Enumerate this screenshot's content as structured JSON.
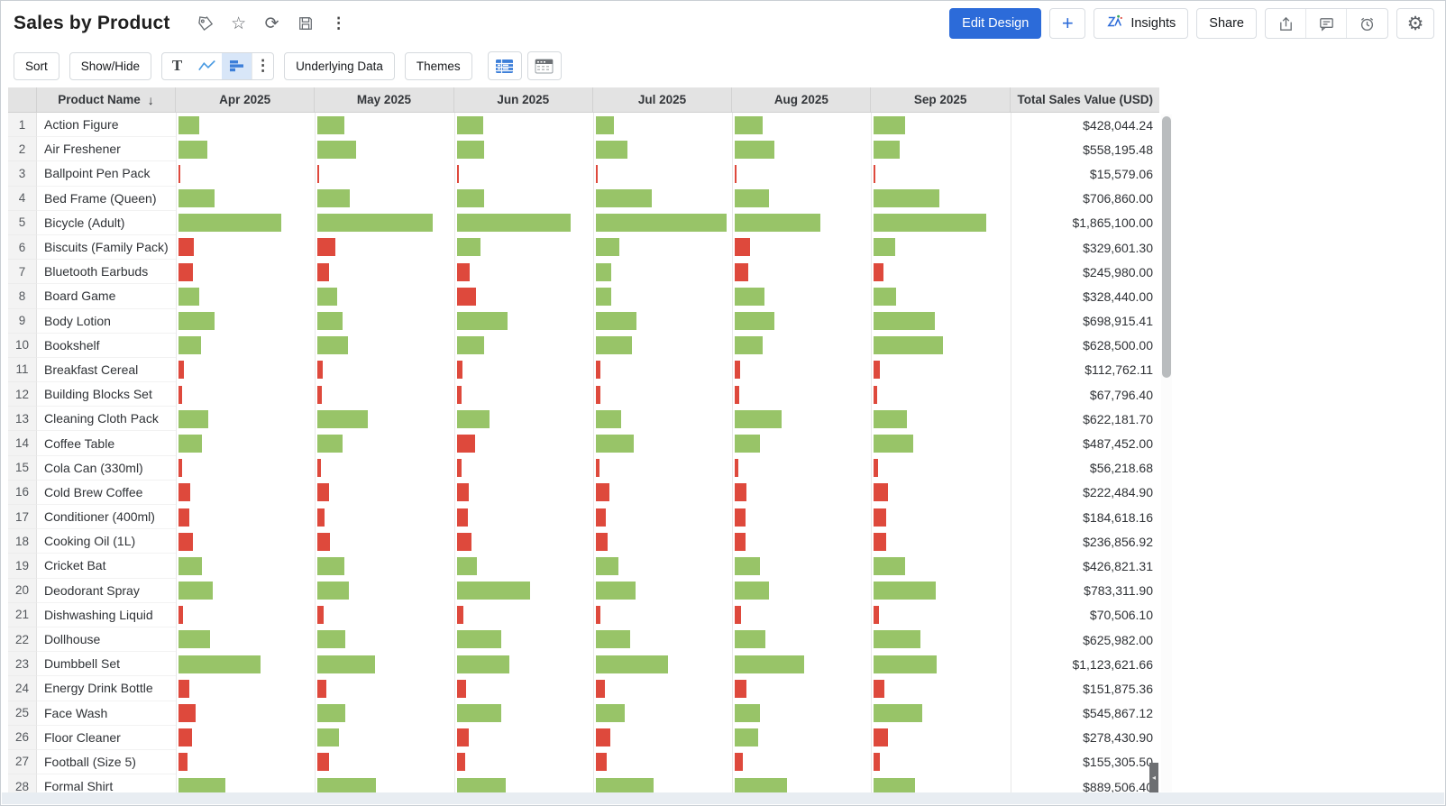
{
  "header": {
    "title": "Sales by Product",
    "actions": {
      "edit_design": "Edit Design",
      "add": "+",
      "insights": "Insights",
      "share": "Share"
    }
  },
  "toolbar": {
    "sort": "Sort",
    "show_hide": "Show/Hide",
    "text_tool": "T",
    "underlying_data": "Underlying Data",
    "themes": "Themes"
  },
  "glyphs": {
    "star": "☆",
    "refresh": "⟳",
    "kebab": "⋮",
    "gear": "⚙",
    "sort_arrow": "↓",
    "handle_arrow": "◂"
  },
  "colors": {
    "bar_green": "#98c468",
    "bar_red": "#de493c",
    "accent_blue": "#2c6bd9"
  },
  "table": {
    "columns": [
      "Product Name",
      "Apr 2025",
      "May 2025",
      "Jun 2025",
      "Jul 2025",
      "Aug 2025",
      "Sep 2025",
      "Total Sales Value (USD)"
    ],
    "sorted_by": "Product Name",
    "sort_direction": "descending-arrow-shown",
    "rows": [
      {
        "num": 1,
        "name": "Action Figure",
        "total": "$428,044.24",
        "bars": [
          [
            23,
            "g"
          ],
          [
            30,
            "g"
          ],
          [
            29,
            "g"
          ],
          [
            20,
            "g"
          ],
          [
            31,
            "g"
          ],
          [
            35,
            "g"
          ]
        ]
      },
      {
        "num": 2,
        "name": "Air Freshener",
        "total": "$558,195.48",
        "bars": [
          [
            32,
            "g"
          ],
          [
            43,
            "g"
          ],
          [
            30,
            "g"
          ],
          [
            35,
            "g"
          ],
          [
            44,
            "g"
          ],
          [
            29,
            "g"
          ]
        ]
      },
      {
        "num": 3,
        "name": "Ballpoint Pen Pack",
        "total": "$15,579.06",
        "bars": [
          [
            2,
            "r"
          ],
          [
            2,
            "r"
          ],
          [
            2,
            "r"
          ],
          [
            2,
            "r"
          ],
          [
            2,
            "r"
          ],
          [
            2,
            "r"
          ]
        ]
      },
      {
        "num": 4,
        "name": "Bed Frame (Queen)",
        "total": "$706,860.00",
        "bars": [
          [
            40,
            "g"
          ],
          [
            36,
            "g"
          ],
          [
            30,
            "g"
          ],
          [
            62,
            "g"
          ],
          [
            38,
            "g"
          ],
          [
            73,
            "g"
          ]
        ]
      },
      {
        "num": 5,
        "name": "Bicycle (Adult)",
        "total": "$1,865,100.00",
        "bars": [
          [
            114,
            "g"
          ],
          [
            128,
            "g"
          ],
          [
            126,
            "g"
          ],
          [
            145,
            "g"
          ],
          [
            95,
            "g"
          ],
          [
            125,
            "g"
          ]
        ]
      },
      {
        "num": 6,
        "name": "Biscuits (Family Pack)",
        "total": "$329,601.30",
        "bars": [
          [
            17,
            "r"
          ],
          [
            20,
            "r"
          ],
          [
            26,
            "g"
          ],
          [
            26,
            "g"
          ],
          [
            17,
            "r"
          ],
          [
            24,
            "g"
          ]
        ]
      },
      {
        "num": 7,
        "name": "Bluetooth Earbuds",
        "total": "$245,980.00",
        "bars": [
          [
            16,
            "r"
          ],
          [
            13,
            "r"
          ],
          [
            14,
            "r"
          ],
          [
            17,
            "g"
          ],
          [
            15,
            "r"
          ],
          [
            11,
            "r"
          ]
        ]
      },
      {
        "num": 8,
        "name": "Board Game",
        "total": "$328,440.00",
        "bars": [
          [
            23,
            "g"
          ],
          [
            22,
            "g"
          ],
          [
            21,
            "r"
          ],
          [
            17,
            "g"
          ],
          [
            33,
            "g"
          ],
          [
            25,
            "g"
          ]
        ]
      },
      {
        "num": 9,
        "name": "Body Lotion",
        "total": "$698,915.41",
        "bars": [
          [
            40,
            "g"
          ],
          [
            28,
            "g"
          ],
          [
            56,
            "g"
          ],
          [
            45,
            "g"
          ],
          [
            44,
            "g"
          ],
          [
            68,
            "g"
          ]
        ]
      },
      {
        "num": 10,
        "name": "Bookshelf",
        "total": "$628,500.00",
        "bars": [
          [
            25,
            "g"
          ],
          [
            34,
            "g"
          ],
          [
            30,
            "g"
          ],
          [
            40,
            "g"
          ],
          [
            31,
            "g"
          ],
          [
            77,
            "g"
          ]
        ]
      },
      {
        "num": 11,
        "name": "Breakfast Cereal",
        "total": "$112,762.11",
        "bars": [
          [
            6,
            "r"
          ],
          [
            6,
            "r"
          ],
          [
            6,
            "r"
          ],
          [
            5,
            "r"
          ],
          [
            6,
            "r"
          ],
          [
            7,
            "r"
          ]
        ]
      },
      {
        "num": 12,
        "name": "Building Blocks Set",
        "total": "$67,796.40",
        "bars": [
          [
            4,
            "r"
          ],
          [
            5,
            "r"
          ],
          [
            5,
            "r"
          ],
          [
            5,
            "r"
          ],
          [
            5,
            "r"
          ],
          [
            4,
            "r"
          ]
        ]
      },
      {
        "num": 13,
        "name": "Cleaning Cloth Pack",
        "total": "$622,181.70",
        "bars": [
          [
            33,
            "g"
          ],
          [
            56,
            "g"
          ],
          [
            36,
            "g"
          ],
          [
            28,
            "g"
          ],
          [
            52,
            "g"
          ],
          [
            37,
            "g"
          ]
        ]
      },
      {
        "num": 14,
        "name": "Coffee Table",
        "total": "$487,452.00",
        "bars": [
          [
            26,
            "g"
          ],
          [
            28,
            "g"
          ],
          [
            20,
            "r"
          ],
          [
            42,
            "g"
          ],
          [
            28,
            "g"
          ],
          [
            44,
            "g"
          ]
        ]
      },
      {
        "num": 15,
        "name": "Cola Can (330ml)",
        "total": "$56,218.68",
        "bars": [
          [
            4,
            "r"
          ],
          [
            4,
            "r"
          ],
          [
            5,
            "r"
          ],
          [
            4,
            "r"
          ],
          [
            4,
            "r"
          ],
          [
            5,
            "r"
          ]
        ]
      },
      {
        "num": 16,
        "name": "Cold Brew Coffee",
        "total": "$222,484.90",
        "bars": [
          [
            13,
            "r"
          ],
          [
            13,
            "r"
          ],
          [
            13,
            "r"
          ],
          [
            15,
            "r"
          ],
          [
            13,
            "r"
          ],
          [
            16,
            "r"
          ]
        ]
      },
      {
        "num": 17,
        "name": "Conditioner (400ml)",
        "total": "$184,618.16",
        "bars": [
          [
            12,
            "r"
          ],
          [
            8,
            "r"
          ],
          [
            12,
            "r"
          ],
          [
            11,
            "r"
          ],
          [
            12,
            "r"
          ],
          [
            14,
            "r"
          ]
        ]
      },
      {
        "num": 18,
        "name": "Cooking Oil (1L)",
        "total": "$236,856.92",
        "bars": [
          [
            16,
            "r"
          ],
          [
            14,
            "r"
          ],
          [
            16,
            "r"
          ],
          [
            13,
            "r"
          ],
          [
            12,
            "r"
          ],
          [
            14,
            "r"
          ]
        ]
      },
      {
        "num": 19,
        "name": "Cricket Bat",
        "total": "$426,821.31",
        "bars": [
          [
            26,
            "g"
          ],
          [
            30,
            "g"
          ],
          [
            22,
            "g"
          ],
          [
            25,
            "g"
          ],
          [
            28,
            "g"
          ],
          [
            35,
            "g"
          ]
        ]
      },
      {
        "num": 20,
        "name": "Deodorant Spray",
        "total": "$783,311.90",
        "bars": [
          [
            38,
            "g"
          ],
          [
            35,
            "g"
          ],
          [
            81,
            "g"
          ],
          [
            44,
            "g"
          ],
          [
            38,
            "g"
          ],
          [
            69,
            "g"
          ]
        ]
      },
      {
        "num": 21,
        "name": "Dishwashing Liquid",
        "total": "$70,506.10",
        "bars": [
          [
            5,
            "r"
          ],
          [
            7,
            "r"
          ],
          [
            7,
            "r"
          ],
          [
            5,
            "r"
          ],
          [
            7,
            "r"
          ],
          [
            6,
            "r"
          ]
        ]
      },
      {
        "num": 22,
        "name": "Dollhouse",
        "total": "$625,982.00",
        "bars": [
          [
            35,
            "g"
          ],
          [
            31,
            "g"
          ],
          [
            49,
            "g"
          ],
          [
            38,
            "g"
          ],
          [
            34,
            "g"
          ],
          [
            52,
            "g"
          ]
        ]
      },
      {
        "num": 23,
        "name": "Dumbbell Set",
        "total": "$1,123,621.66",
        "bars": [
          [
            91,
            "g"
          ],
          [
            64,
            "g"
          ],
          [
            58,
            "g"
          ],
          [
            80,
            "g"
          ],
          [
            77,
            "g"
          ],
          [
            70,
            "g"
          ]
        ]
      },
      {
        "num": 24,
        "name": "Energy Drink Bottle",
        "total": "$151,875.36",
        "bars": [
          [
            12,
            "r"
          ],
          [
            10,
            "r"
          ],
          [
            10,
            "r"
          ],
          [
            10,
            "r"
          ],
          [
            13,
            "r"
          ],
          [
            12,
            "r"
          ]
        ]
      },
      {
        "num": 25,
        "name": "Face Wash",
        "total": "$545,867.12",
        "bars": [
          [
            19,
            "r"
          ],
          [
            31,
            "g"
          ],
          [
            49,
            "g"
          ],
          [
            32,
            "g"
          ],
          [
            28,
            "g"
          ],
          [
            54,
            "g"
          ]
        ]
      },
      {
        "num": 26,
        "name": "Floor Cleaner",
        "total": "$278,430.90",
        "bars": [
          [
            15,
            "r"
          ],
          [
            24,
            "g"
          ],
          [
            13,
            "r"
          ],
          [
            16,
            "r"
          ],
          [
            26,
            "g"
          ],
          [
            16,
            "r"
          ]
        ]
      },
      {
        "num": 27,
        "name": "Football (Size 5)",
        "total": "$155,305.50",
        "bars": [
          [
            10,
            "r"
          ],
          [
            13,
            "r"
          ],
          [
            9,
            "r"
          ],
          [
            12,
            "r"
          ],
          [
            9,
            "r"
          ],
          [
            7,
            "r"
          ]
        ]
      },
      {
        "num": 28,
        "name": "Formal Shirt",
        "total": "$889,506.40",
        "bars": [
          [
            52,
            "g"
          ],
          [
            65,
            "g"
          ],
          [
            54,
            "g"
          ],
          [
            64,
            "g"
          ],
          [
            58,
            "g"
          ],
          [
            46,
            "g"
          ]
        ]
      }
    ]
  }
}
